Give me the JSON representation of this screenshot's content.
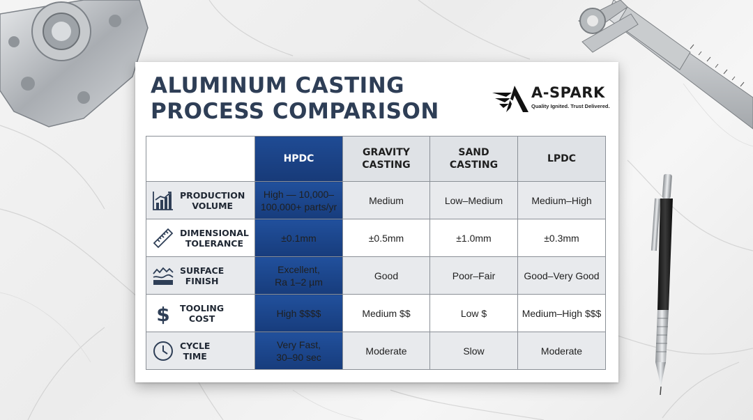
{
  "title_lines": [
    "ALUMINUM CASTING",
    "PROCESS COMPARISON"
  ],
  "brand": {
    "name": "A-SPARK",
    "tagline": "Quality Ignited. Trust Delivered."
  },
  "table": {
    "columns": [
      "HPDC",
      "GRAVITY\nCASTING",
      "SAND\nCASTING",
      "LPDC"
    ],
    "rows": [
      {
        "label": "PRODUCTION\nVOLUME",
        "icon": "bar-chart-icon",
        "values": [
          "High — 10,000–\n100,000+ parts/yr",
          "Medium",
          "Low–Medium",
          "Medium–High"
        ]
      },
      {
        "label": "DIMENSIONAL\nTOLERANCE",
        "icon": "ruler-icon",
        "values": [
          "±0.1mm",
          "±0.5mm",
          "±1.0mm",
          "±0.3mm"
        ]
      },
      {
        "label": "SURFACE\nFINISH",
        "icon": "surface-icon",
        "values": [
          "Excellent,\nRa 1–2 µm",
          "Good",
          "Poor–Fair",
          "Good–Very Good"
        ]
      },
      {
        "label": "TOOLING\nCOST",
        "icon": "dollar-icon",
        "values": [
          "High $$$$",
          "Medium $$",
          "Low $",
          "Medium–High $$$"
        ]
      },
      {
        "label": "CYCLE\nTIME",
        "icon": "clock-icon",
        "values": [
          "Very Fast,\n30–90 sec",
          "Moderate",
          "Slow",
          "Moderate"
        ]
      }
    ]
  },
  "colors": {
    "title": "#2e3e56",
    "hpdc_column": "#1f4b94",
    "header_gray": "#dfe2e6"
  }
}
